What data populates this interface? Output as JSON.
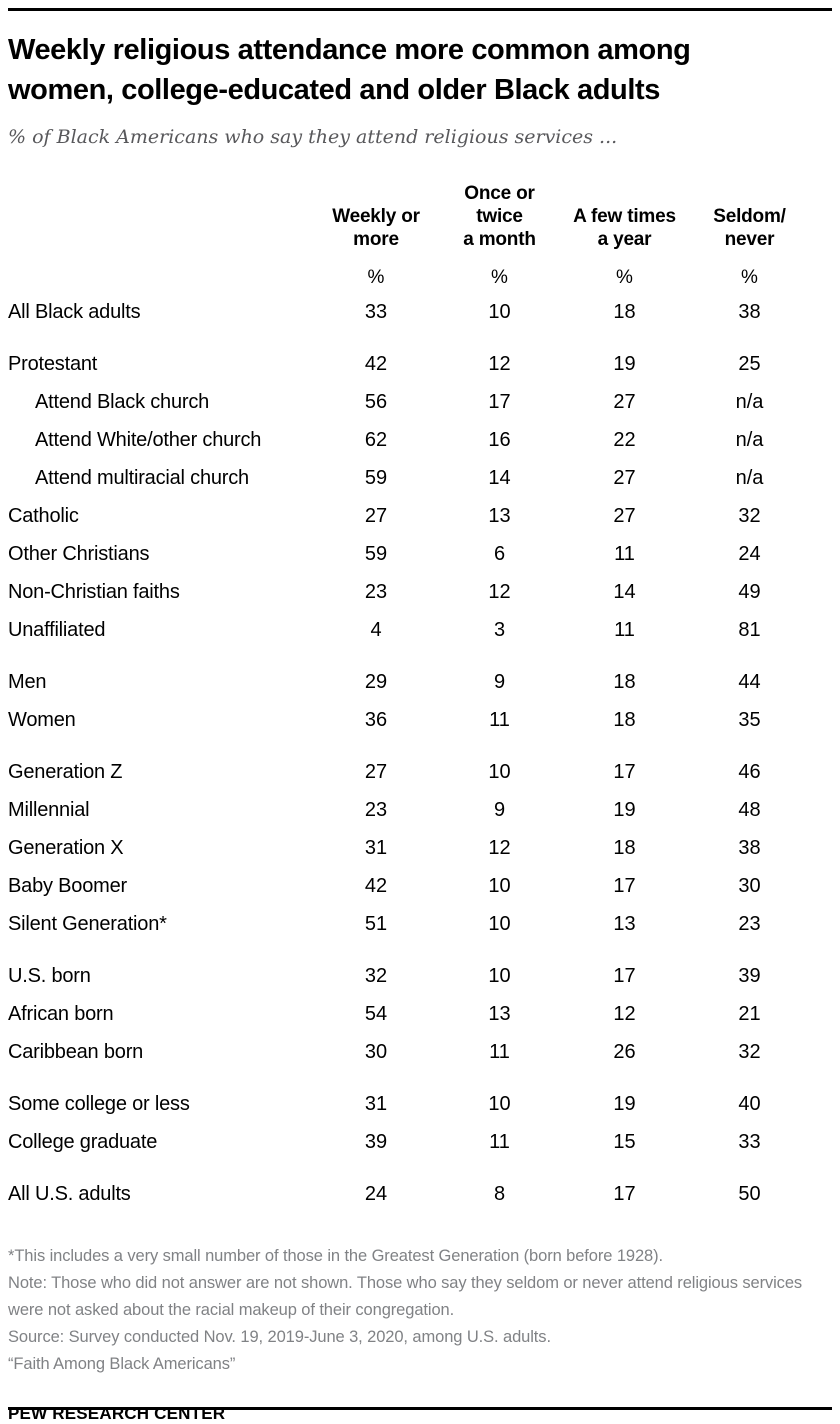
{
  "header": {
    "title": "Weekly religious attendance more common among\nwomen, college-educated and older Black adults",
    "subtitle": "% of Black Americans who say they attend religious services ..."
  },
  "chart_data": {
    "type": "table",
    "title": "Weekly religious attendance more common among women, college-educated and older Black adults",
    "subtitle": "% of Black Americans who say they attend religious services ...",
    "columns": [
      "Weekly or more",
      "Once or twice a month",
      "A few times a year",
      "Seldom/never"
    ],
    "col_display": [
      "Weekly or\nmore",
      "Once or\ntwice\na month",
      "A few times\na year",
      "Seldom/\nnever"
    ],
    "unit_row": [
      "%",
      "%",
      "%",
      "%"
    ],
    "rows": [
      {
        "label": "All Black adults",
        "indent": false,
        "group_start": false,
        "values": [
          "33",
          "10",
          "18",
          "38"
        ]
      },
      {
        "label": "Protestant",
        "indent": false,
        "group_start": true,
        "values": [
          "42",
          "12",
          "19",
          "25"
        ]
      },
      {
        "label": "Attend Black church",
        "indent": true,
        "group_start": false,
        "values": [
          "56",
          "17",
          "27",
          "n/a"
        ]
      },
      {
        "label": "Attend White/other church",
        "indent": true,
        "group_start": false,
        "values": [
          "62",
          "16",
          "22",
          "n/a"
        ]
      },
      {
        "label": "Attend multiracial church",
        "indent": true,
        "group_start": false,
        "values": [
          "59",
          "14",
          "27",
          "n/a"
        ]
      },
      {
        "label": "Catholic",
        "indent": false,
        "group_start": false,
        "values": [
          "27",
          "13",
          "27",
          "32"
        ]
      },
      {
        "label": "Other Christians",
        "indent": false,
        "group_start": false,
        "values": [
          "59",
          "6",
          "11",
          "24"
        ]
      },
      {
        "label": "Non-Christian faiths",
        "indent": false,
        "group_start": false,
        "values": [
          "23",
          "12",
          "14",
          "49"
        ]
      },
      {
        "label": "Unaffiliated",
        "indent": false,
        "group_start": false,
        "values": [
          "4",
          "3",
          "11",
          "81"
        ]
      },
      {
        "label": "Men",
        "indent": false,
        "group_start": true,
        "values": [
          "29",
          "9",
          "18",
          "44"
        ]
      },
      {
        "label": "Women",
        "indent": false,
        "group_start": false,
        "values": [
          "36",
          "11",
          "18",
          "35"
        ]
      },
      {
        "label": "Generation Z",
        "indent": false,
        "group_start": true,
        "values": [
          "27",
          "10",
          "17",
          "46"
        ]
      },
      {
        "label": "Millennial",
        "indent": false,
        "group_start": false,
        "values": [
          "23",
          "9",
          "19",
          "48"
        ]
      },
      {
        "label": "Generation X",
        "indent": false,
        "group_start": false,
        "values": [
          "31",
          "12",
          "18",
          "38"
        ]
      },
      {
        "label": "Baby Boomer",
        "indent": false,
        "group_start": false,
        "values": [
          "42",
          "10",
          "17",
          "30"
        ]
      },
      {
        "label": "Silent Generation*",
        "indent": false,
        "group_start": false,
        "values": [
          "51",
          "10",
          "13",
          "23"
        ]
      },
      {
        "label": "U.S. born",
        "indent": false,
        "group_start": true,
        "values": [
          "32",
          "10",
          "17",
          "39"
        ]
      },
      {
        "label": "African born",
        "indent": false,
        "group_start": false,
        "values": [
          "54",
          "13",
          "12",
          "21"
        ]
      },
      {
        "label": "Caribbean born",
        "indent": false,
        "group_start": false,
        "values": [
          "30",
          "11",
          "26",
          "32"
        ]
      },
      {
        "label": "Some college or less",
        "indent": false,
        "group_start": true,
        "values": [
          "31",
          "10",
          "19",
          "40"
        ]
      },
      {
        "label": "College graduate",
        "indent": false,
        "group_start": false,
        "values": [
          "39",
          "11",
          "15",
          "33"
        ]
      },
      {
        "label": "All U.S. adults",
        "indent": false,
        "group_start": true,
        "values": [
          "24",
          "8",
          "17",
          "50"
        ]
      }
    ]
  },
  "notes": {
    "footnote": "*This includes a very small number of those in the Greatest Generation (born before 1928).",
    "note": "Note: Those who did not answer are not shown. Those who say they seldom or never attend religious services were not asked about the racial makeup of their congregation.",
    "source": "Source: Survey conducted Nov. 19, 2019-June 3, 2020, among U.S. adults.",
    "quote": "“Faith Among Black Americans”",
    "brand": "PEW RESEARCH CENTER"
  },
  "colors": {
    "text": "#000000",
    "subtitle_gray": "#58585b",
    "notes_gray": "#808285",
    "rule_black": "#000000"
  }
}
